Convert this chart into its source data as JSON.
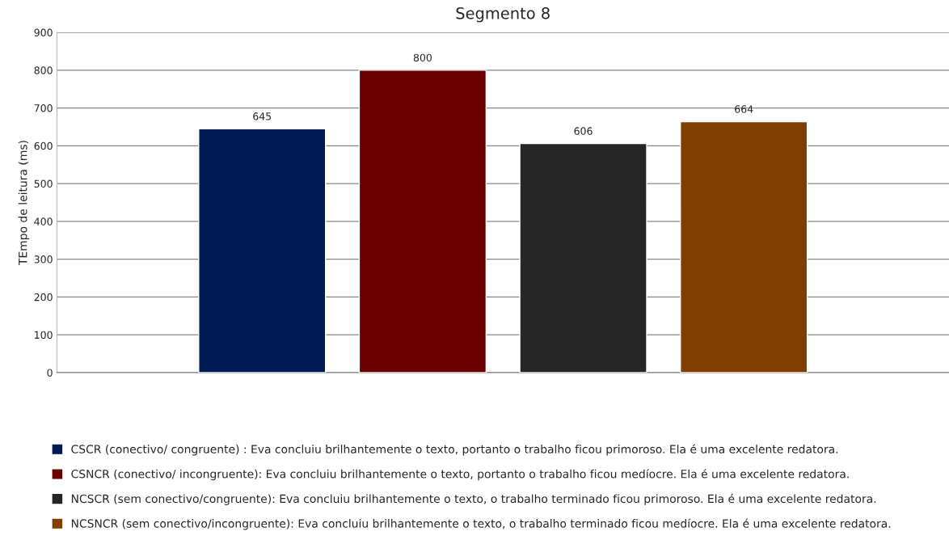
{
  "chart_data": {
    "type": "bar",
    "title": "Segmento 8",
    "ylabel": "TEmpo de leitura (ms)",
    "categories": [
      null
    ],
    "series": [
      {
        "name": "CSCR (conectivo/ congruente) : Eva concluiu brilhantemente o texto, portanto o trabalho ficou primoroso. Ela é uma excelente redatora.",
        "color": "#001b54",
        "values": [
          645
        ]
      },
      {
        "name": "CSNCR (conectivo/ incongruente): Eva concluiu brilhantemente o texto, portanto o trabalho ficou medíocre. Ela é uma excelente redatora.",
        "color": "#6b0000",
        "values": [
          800
        ]
      },
      {
        "name": "NCSCR (sem conectivo/congruente): Eva concluiu brilhantemente o texto, o trabalho terminado ficou primoroso. Ela é uma excelente redatora.",
        "color": "#262626",
        "values": [
          606
        ]
      },
      {
        "name": "NCSNCR (sem conectivo/incongruente): Eva concluiu brilhantemente o texto, o trabalho terminado ficou medíocre. Ela é uma excelente redatora.",
        "color": "#7f3f00",
        "values": [
          664
        ]
      }
    ],
    "ylim": [
      0,
      900
    ],
    "yticks": [
      0,
      100,
      200,
      300,
      400,
      500,
      600,
      700,
      800,
      900
    ],
    "grid": "y",
    "legend": "bottom",
    "data_labels": true
  }
}
